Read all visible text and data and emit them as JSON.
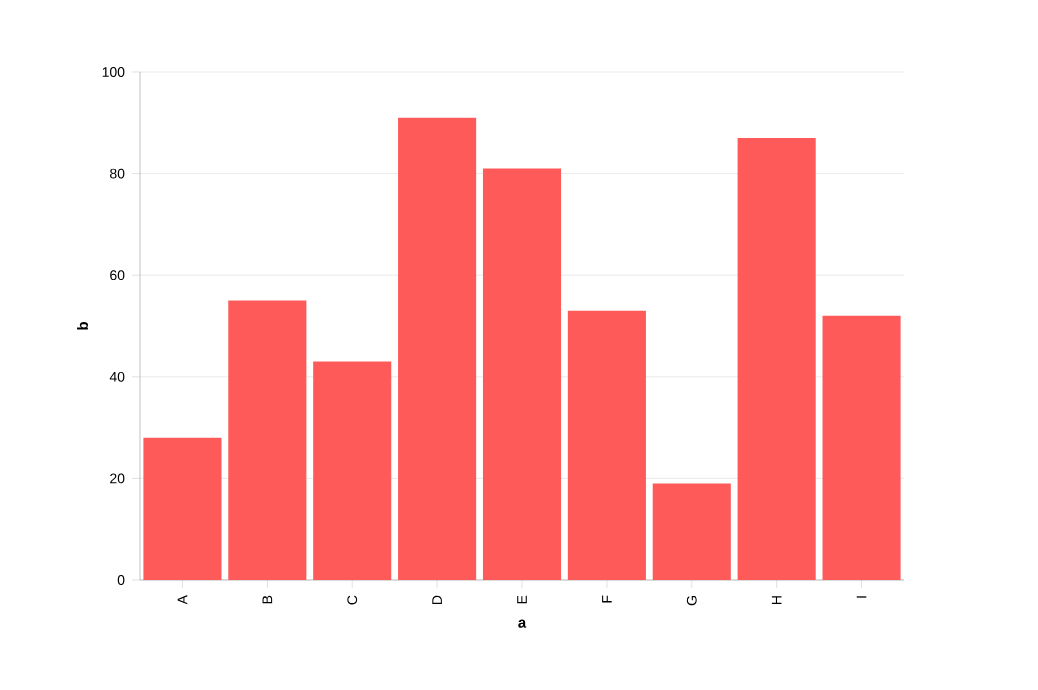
{
  "chart_data": {
    "type": "bar",
    "xlabel": "a",
    "ylabel": "b",
    "categories": [
      "A",
      "B",
      "C",
      "D",
      "E",
      "F",
      "G",
      "H",
      "I"
    ],
    "values": [
      28,
      55,
      43,
      91,
      81,
      53,
      19,
      87,
      52
    ],
    "color": "#ff5a5a",
    "ylim": [
      0,
      100
    ],
    "yticks": [
      0,
      20,
      40,
      60,
      80,
      100
    ],
    "grid": "y"
  }
}
